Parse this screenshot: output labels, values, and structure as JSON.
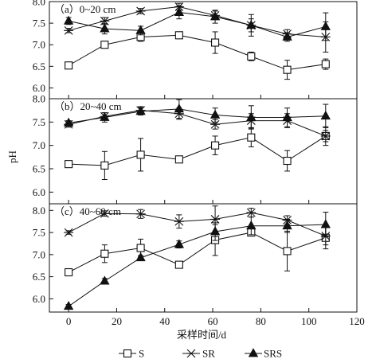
{
  "chart_data": {
    "type": "line",
    "ylabel": "pH",
    "xlabel": "采样时间/d",
    "x_ticks": [
      0,
      20,
      40,
      60,
      80,
      100,
      120
    ],
    "xlim": [
      -8,
      120
    ],
    "series_meta": [
      {
        "name": "S",
        "marker": "square-open"
      },
      {
        "name": "SR",
        "marker": "x-star"
      },
      {
        "name": "SRS",
        "marker": "triangle-filled"
      }
    ],
    "x": [
      0,
      15,
      30,
      46,
      61,
      76,
      91,
      107
    ],
    "panels": [
      {
        "label": "（a）0~20 cm",
        "ylim": [
          5.75,
          8.0
        ],
        "y_ticks": [
          "8.0",
          "7.5",
          "7.0",
          "6.5",
          "6.0"
        ],
        "y_tick_values": [
          8.0,
          7.5,
          7.0,
          6.5,
          6.0
        ],
        "series": [
          {
            "name": "S",
            "values": [
              6.52,
              7.0,
              7.18,
              7.22,
              7.05,
              6.73,
              6.42,
              6.55
            ],
            "err": [
              0.05,
              0.08,
              0.1,
              0.08,
              0.25,
              0.1,
              0.22,
              0.12
            ]
          },
          {
            "name": "SR",
            "values": [
              7.33,
              7.55,
              7.78,
              7.88,
              7.68,
              7.45,
              7.25,
              7.18
            ],
            "err": [
              0.05,
              0.08,
              0.06,
              0.08,
              0.1,
              0.25,
              0.1,
              0.35
            ]
          },
          {
            "name": "SRS",
            "values": [
              7.55,
              7.37,
              7.33,
              7.75,
              7.65,
              7.45,
              7.18,
              7.42
            ],
            "err": [
              0.08,
              0.12,
              0.1,
              0.15,
              0.15,
              0.15,
              0.1,
              0.32
            ]
          }
        ]
      },
      {
        "label": "（b）20~40 cm",
        "ylim": [
          5.75,
          8.0
        ],
        "y_ticks": [
          "8.0",
          "7.5",
          "7.0",
          "6.5",
          "6.0"
        ],
        "y_tick_values": [
          8.0,
          7.5,
          7.0,
          6.5,
          6.0
        ],
        "series": [
          {
            "name": "S",
            "values": [
              6.6,
              6.57,
              6.8,
              6.7,
              7.0,
              7.17,
              6.67,
              7.2
            ],
            "err": [
              0.05,
              0.3,
              0.35,
              0.05,
              0.2,
              0.2,
              0.22,
              0.2
            ]
          },
          {
            "name": "SR",
            "values": [
              7.45,
              7.62,
              7.75,
              7.68,
              7.45,
              7.53,
              7.53,
              7.2
            ],
            "err": [
              0.06,
              0.08,
              0.08,
              0.12,
              0.1,
              0.15,
              0.15,
              0.12
            ]
          },
          {
            "name": "SRS",
            "values": [
              7.48,
              7.6,
              7.73,
              7.78,
              7.65,
              7.6,
              7.6,
              7.63
            ],
            "err": [
              0.05,
              0.1,
              0.08,
              0.2,
              0.15,
              0.25,
              0.2,
              0.25
            ]
          }
        ]
      },
      {
        "label": "（c）40~60 cm",
        "ylim": [
          5.7,
          8.15
        ],
        "y_ticks": [
          "8.0",
          "7.5",
          "7.0",
          "6.5",
          "6.0"
        ],
        "y_tick_values": [
          8.0,
          7.5,
          7.0,
          6.5,
          6.0
        ],
        "series": [
          {
            "name": "S",
            "values": [
              6.6,
              7.02,
              7.15,
              6.77,
              7.33,
              7.5,
              7.08,
              7.38
            ],
            "err": [
              0.08,
              0.2,
              0.2,
              0.05,
              0.35,
              0.08,
              0.45,
              0.25
            ]
          },
          {
            "name": "SR",
            "values": [
              7.5,
              7.93,
              7.92,
              7.75,
              7.8,
              7.95,
              7.78,
              7.42
            ],
            "err": [
              0.04,
              0.06,
              0.1,
              0.15,
              0.3,
              0.1,
              0.1,
              0.2
            ]
          },
          {
            "name": "SRS",
            "values": [
              5.83,
              6.4,
              6.93,
              7.23,
              7.52,
              7.65,
              7.65,
              7.68
            ],
            "err": [
              0.04,
              0.06,
              0.05,
              0.08,
              0.2,
              0.2,
              0.15,
              0.28
            ]
          }
        ]
      }
    ]
  }
}
